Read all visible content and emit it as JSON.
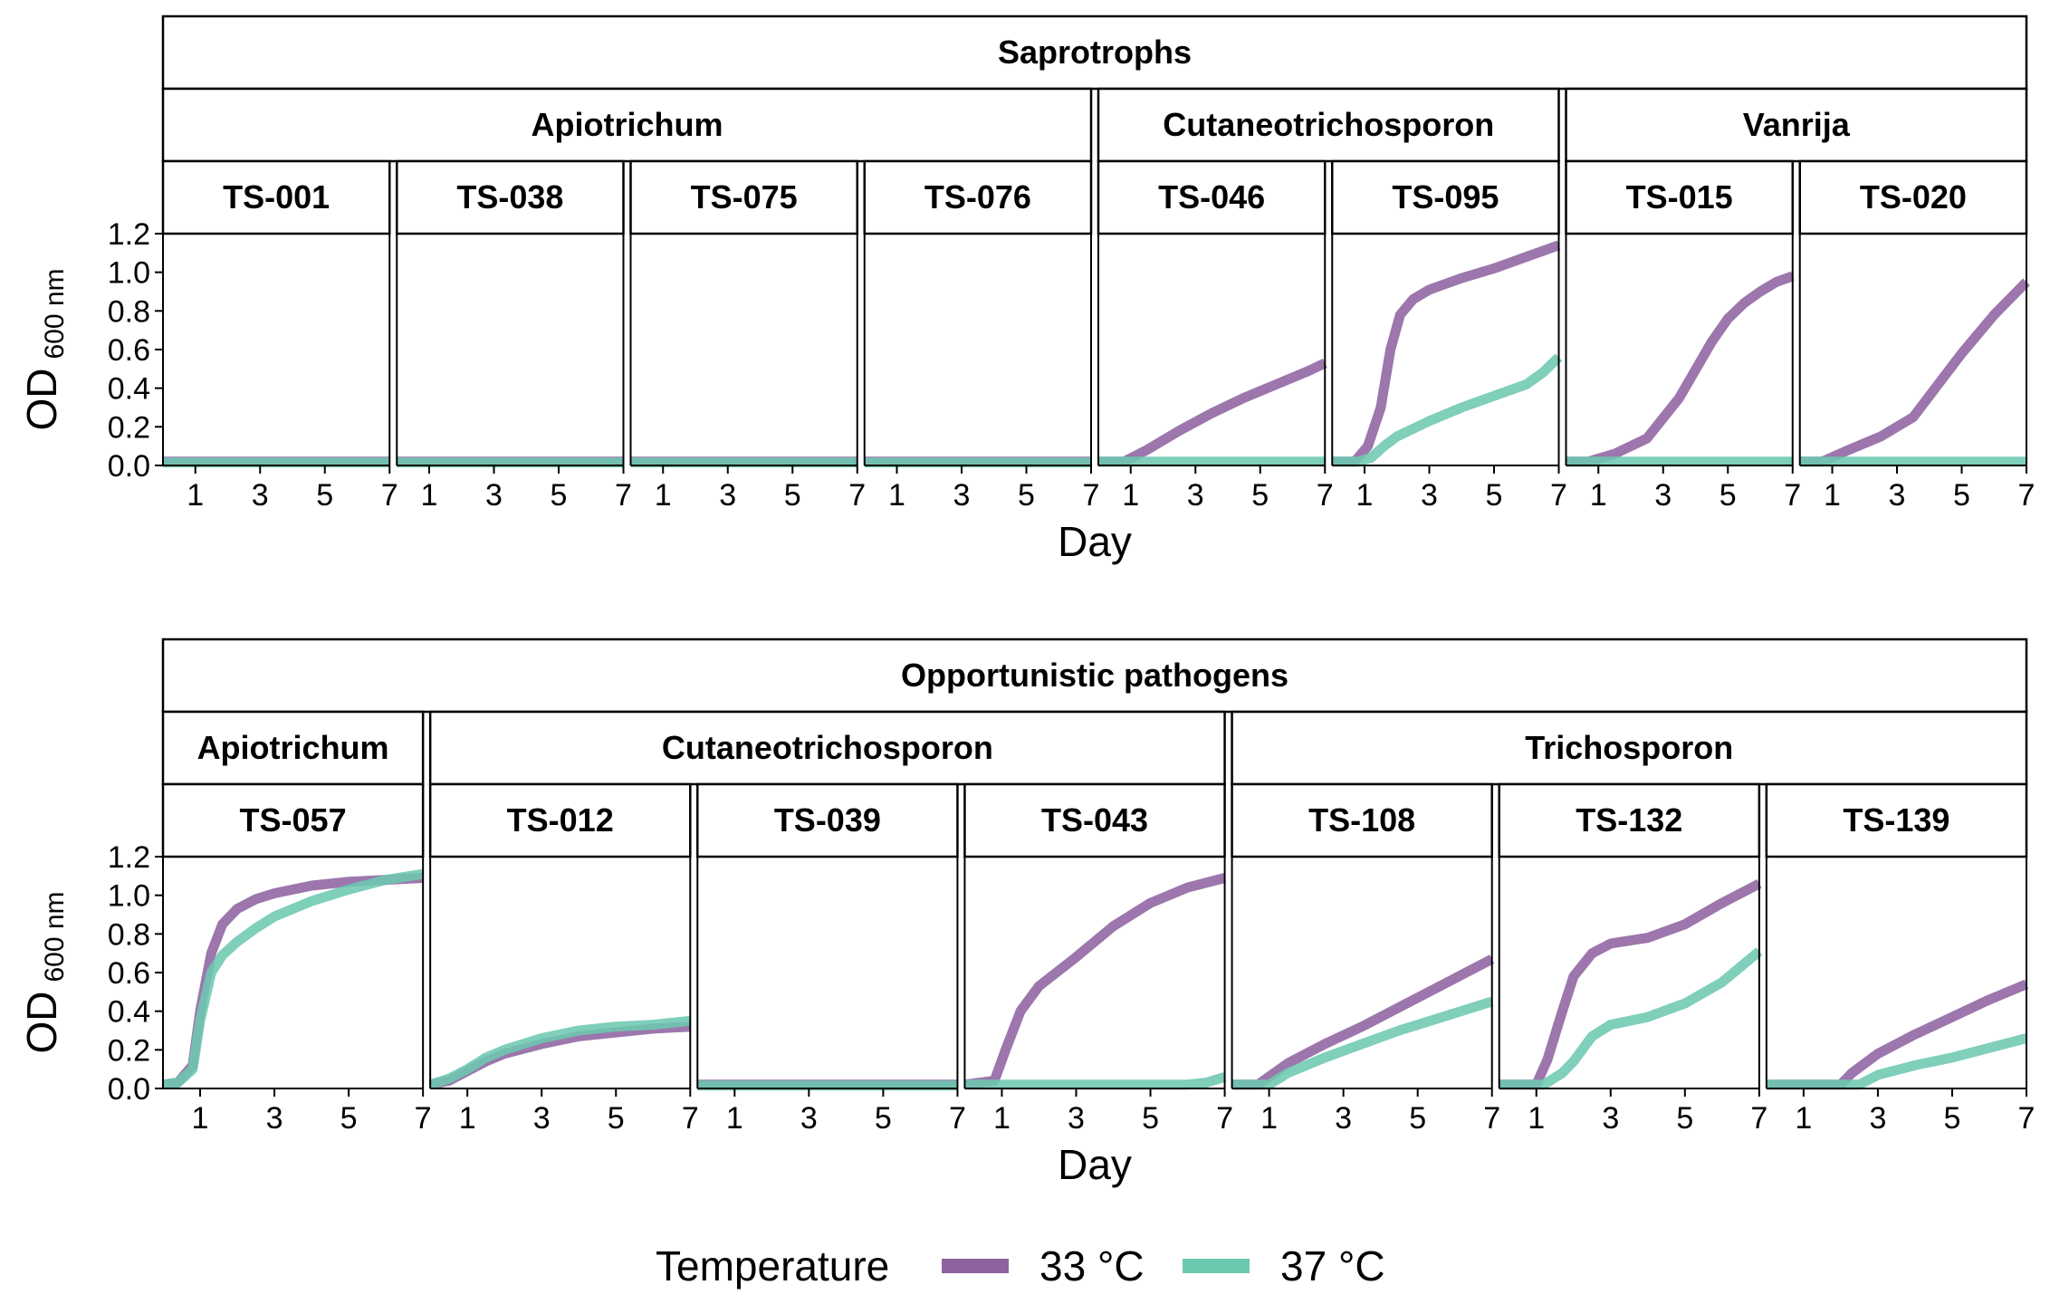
{
  "colors": {
    "33 °C": "#8e63a0",
    "37 °C": "#6dc8b0"
  },
  "legend": {
    "title": "Temperature",
    "items": [
      "33 °C",
      "37 °C"
    ]
  },
  "chart_data": [
    {
      "type": "line",
      "group": "Saprotrophs",
      "xlabel": "Day",
      "ylabel": "OD",
      "ylabel_sub": "600 nm",
      "x_ticks": [
        1,
        3,
        5,
        7
      ],
      "y_ticks": [
        "0.0",
        "0.2",
        "0.4",
        "0.6",
        "0.8",
        "1.0",
        "1.2"
      ],
      "xlim": [
        0,
        7
      ],
      "ylim": [
        0,
        1.2
      ],
      "genera": [
        {
          "name": "Apiotrichum",
          "span": 4
        },
        {
          "name": "Cutaneotrichosporon",
          "span": 2
        },
        {
          "name": "Vanrija",
          "span": 2
        }
      ],
      "panels": [
        {
          "strain": "TS-001",
          "series": [
            {
              "name": "33 °C",
              "x": [
                0,
                7
              ],
              "y": [
                0.02,
                0.02
              ]
            },
            {
              "name": "37 °C",
              "x": [
                0,
                7
              ],
              "y": [
                0.015,
                0.015
              ]
            }
          ]
        },
        {
          "strain": "TS-038",
          "series": [
            {
              "name": "33 °C",
              "x": [
                0,
                7
              ],
              "y": [
                0.02,
                0.02
              ]
            },
            {
              "name": "37 °C",
              "x": [
                0,
                7
              ],
              "y": [
                0.015,
                0.015
              ]
            }
          ]
        },
        {
          "strain": "TS-075",
          "series": [
            {
              "name": "33 °C",
              "x": [
                0,
                7
              ],
              "y": [
                0.02,
                0.02
              ]
            },
            {
              "name": "37 °C",
              "x": [
                0,
                7
              ],
              "y": [
                0.015,
                0.015
              ]
            }
          ]
        },
        {
          "strain": "TS-076",
          "series": [
            {
              "name": "33 °C",
              "x": [
                0,
                7
              ],
              "y": [
                0.02,
                0.02
              ]
            },
            {
              "name": "37 °C",
              "x": [
                0,
                7
              ],
              "y": [
                0.015,
                0.015
              ]
            }
          ]
        },
        {
          "strain": "TS-046",
          "series": [
            {
              "name": "33 °C",
              "x": [
                0,
                0.8,
                1.5,
                2.5,
                3.5,
                4.5,
                5.5,
                6.5,
                7
              ],
              "y": [
                0.02,
                0.02,
                0.08,
                0.18,
                0.27,
                0.35,
                0.42,
                0.49,
                0.53
              ]
            },
            {
              "name": "37 °C",
              "x": [
                0,
                7
              ],
              "y": [
                0.02,
                0.02
              ]
            }
          ]
        },
        {
          "strain": "TS-095",
          "series": [
            {
              "name": "33 °C",
              "x": [
                0,
                0.7,
                1.1,
                1.5,
                1.8,
                2.1,
                2.5,
                3,
                3.5,
                4,
                5,
                6,
                7
              ],
              "y": [
                0.02,
                0.02,
                0.1,
                0.3,
                0.6,
                0.78,
                0.86,
                0.91,
                0.94,
                0.97,
                1.02,
                1.08,
                1.14
              ]
            },
            {
              "name": "37 °C",
              "x": [
                0,
                0.8,
                1.2,
                1.6,
                2,
                3,
                4,
                5,
                5.5,
                6,
                6.5,
                7
              ],
              "y": [
                0.02,
                0.02,
                0.04,
                0.1,
                0.15,
                0.23,
                0.3,
                0.36,
                0.39,
                0.42,
                0.48,
                0.56
              ]
            }
          ]
        },
        {
          "strain": "TS-015",
          "series": [
            {
              "name": "33 °C",
              "x": [
                0,
                0.7,
                1.5,
                2.5,
                3.5,
                4.5,
                5,
                5.5,
                6,
                6.5,
                7
              ],
              "y": [
                0.02,
                0.02,
                0.06,
                0.14,
                0.35,
                0.64,
                0.76,
                0.84,
                0.9,
                0.95,
                0.98
              ]
            },
            {
              "name": "37 °C",
              "x": [
                0,
                7
              ],
              "y": [
                0.02,
                0.02
              ]
            }
          ]
        },
        {
          "strain": "TS-020",
          "series": [
            {
              "name": "33 °C",
              "x": [
                0,
                0.7,
                1.5,
                2.5,
                3.5,
                4,
                5,
                6,
                7
              ],
              "y": [
                0.02,
                0.02,
                0.08,
                0.15,
                0.25,
                0.36,
                0.58,
                0.78,
                0.95
              ]
            },
            {
              "name": "37 °C",
              "x": [
                0,
                7
              ],
              "y": [
                0.02,
                0.02
              ]
            }
          ]
        }
      ]
    },
    {
      "type": "line",
      "group": "Opportunistic pathogens",
      "xlabel": "Day",
      "ylabel": "OD",
      "ylabel_sub": "600 nm",
      "x_ticks": [
        1,
        3,
        5,
        7
      ],
      "y_ticks": [
        "0.0",
        "0.2",
        "0.4",
        "0.6",
        "0.8",
        "1.0",
        "1.2"
      ],
      "xlim": [
        0,
        7
      ],
      "ylim": [
        0,
        1.2
      ],
      "genera": [
        {
          "name": "Apiotrichum",
          "span": 1
        },
        {
          "name": "Cutaneotrichosporon",
          "span": 3
        },
        {
          "name": "Trichosporon",
          "span": 3
        }
      ],
      "panels": [
        {
          "strain": "TS-057",
          "series": [
            {
              "name": "33 °C",
              "x": [
                0,
                0.4,
                0.8,
                1,
                1.3,
                1.6,
                2,
                2.5,
                3,
                4,
                5,
                6,
                7
              ],
              "y": [
                0.02,
                0.03,
                0.12,
                0.4,
                0.7,
                0.85,
                0.93,
                0.98,
                1.01,
                1.05,
                1.07,
                1.08,
                1.09
              ]
            },
            {
              "name": "37 °C",
              "x": [
                0,
                0.4,
                0.8,
                1,
                1.3,
                1.6,
                2,
                2.5,
                3,
                4,
                5,
                6,
                7
              ],
              "y": [
                0.02,
                0.03,
                0.1,
                0.35,
                0.6,
                0.69,
                0.76,
                0.83,
                0.89,
                0.97,
                1.03,
                1.08,
                1.11
              ]
            }
          ]
        },
        {
          "strain": "TS-012",
          "series": [
            {
              "name": "33 °C",
              "x": [
                0,
                0.5,
                1,
                1.5,
                2,
                3,
                4,
                5,
                6,
                7
              ],
              "y": [
                0.02,
                0.04,
                0.09,
                0.14,
                0.18,
                0.23,
                0.27,
                0.29,
                0.31,
                0.32
              ]
            },
            {
              "name": "37 °C",
              "x": [
                0,
                0.5,
                1,
                1.5,
                2,
                3,
                4,
                5,
                6,
                7
              ],
              "y": [
                0.02,
                0.05,
                0.1,
                0.16,
                0.2,
                0.26,
                0.3,
                0.32,
                0.33,
                0.35
              ]
            }
          ]
        },
        {
          "strain": "TS-039",
          "series": [
            {
              "name": "33 °C",
              "x": [
                0,
                7
              ],
              "y": [
                0.02,
                0.02
              ]
            },
            {
              "name": "37 °C",
              "x": [
                0,
                7
              ],
              "y": [
                0.015,
                0.015
              ]
            }
          ]
        },
        {
          "strain": "TS-043",
          "series": [
            {
              "name": "33 °C",
              "x": [
                0,
                0.8,
                1.1,
                1.5,
                2,
                3,
                4,
                5,
                6,
                7
              ],
              "y": [
                0.02,
                0.04,
                0.2,
                0.4,
                0.53,
                0.68,
                0.84,
                0.96,
                1.04,
                1.09
              ]
            },
            {
              "name": "37 °C",
              "x": [
                0,
                6,
                6.5,
                7
              ],
              "y": [
                0.02,
                0.02,
                0.03,
                0.06
              ]
            }
          ]
        },
        {
          "strain": "TS-108",
          "series": [
            {
              "name": "33 °C",
              "x": [
                0,
                0.7,
                1.5,
                2.5,
                3.5,
                4.5,
                5.5,
                6.5,
                7
              ],
              "y": [
                0.02,
                0.02,
                0.13,
                0.23,
                0.32,
                0.42,
                0.52,
                0.62,
                0.67
              ]
            },
            {
              "name": "37 °C",
              "x": [
                0,
                1,
                1.5,
                2.5,
                3.5,
                4.5,
                5.5,
                6.5,
                7
              ],
              "y": [
                0.02,
                0.02,
                0.08,
                0.16,
                0.23,
                0.3,
                0.36,
                0.42,
                0.45
              ]
            }
          ]
        },
        {
          "strain": "TS-132",
          "series": [
            {
              "name": "33 °C",
              "x": [
                0,
                1,
                1.3,
                1.7,
                2,
                2.5,
                3,
                4,
                5,
                6,
                7
              ],
              "y": [
                0.02,
                0.02,
                0.15,
                0.4,
                0.58,
                0.7,
                0.75,
                0.78,
                0.85,
                0.96,
                1.06
              ]
            },
            {
              "name": "37 °C",
              "x": [
                0,
                1.2,
                1.7,
                2,
                2.5,
                3,
                4,
                5,
                6,
                6.5,
                7
              ],
              "y": [
                0.02,
                0.02,
                0.08,
                0.14,
                0.27,
                0.33,
                0.37,
                0.44,
                0.55,
                0.63,
                0.71
              ]
            }
          ]
        },
        {
          "strain": "TS-139",
          "series": [
            {
              "name": "33 °C",
              "x": [
                0,
                2,
                2.3,
                3,
                4,
                5,
                6,
                7
              ],
              "y": [
                0.02,
                0.02,
                0.08,
                0.18,
                0.28,
                0.37,
                0.46,
                0.54
              ]
            },
            {
              "name": "37 °C",
              "x": [
                0,
                2.5,
                3,
                4,
                5,
                6,
                7
              ],
              "y": [
                0.02,
                0.02,
                0.07,
                0.12,
                0.16,
                0.21,
                0.26
              ]
            }
          ]
        }
      ]
    }
  ]
}
